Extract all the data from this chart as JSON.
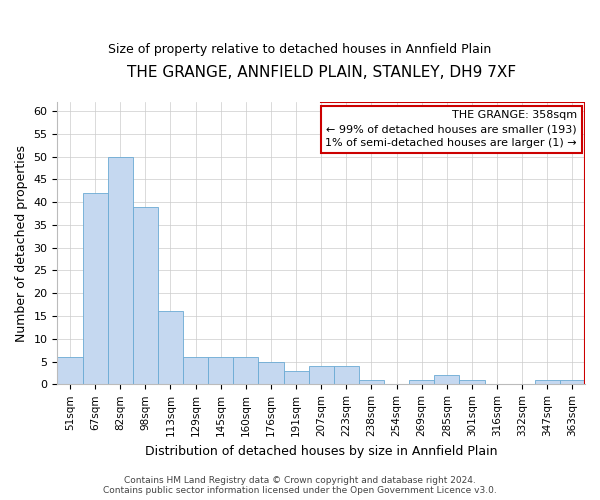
{
  "title": "THE GRANGE, ANNFIELD PLAIN, STANLEY, DH9 7XF",
  "subtitle": "Size of property relative to detached houses in Annfield Plain",
  "xlabel": "Distribution of detached houses by size in Annfield Plain",
  "ylabel": "Number of detached properties",
  "footer1": "Contains HM Land Registry data © Crown copyright and database right 2024.",
  "footer2": "Contains public sector information licensed under the Open Government Licence v3.0.",
  "bar_labels": [
    "51sqm",
    "67sqm",
    "82sqm",
    "98sqm",
    "113sqm",
    "129sqm",
    "145sqm",
    "160sqm",
    "176sqm",
    "191sqm",
    "207sqm",
    "223sqm",
    "238sqm",
    "254sqm",
    "269sqm",
    "285sqm",
    "301sqm",
    "316sqm",
    "332sqm",
    "347sqm",
    "363sqm"
  ],
  "bar_values": [
    6,
    42,
    50,
    39,
    16,
    6,
    6,
    6,
    5,
    3,
    4,
    4,
    1,
    0,
    1,
    2,
    1,
    0,
    0,
    1,
    1
  ],
  "bar_color": "#c5d8f0",
  "bar_edgecolor": "#6aaad4",
  "ylim": [
    0,
    62
  ],
  "yticks": [
    0,
    5,
    10,
    15,
    20,
    25,
    30,
    35,
    40,
    45,
    50,
    55,
    60
  ],
  "annotation_line1": "THE GRANGE: 358sqm",
  "annotation_line2": "← 99% of detached houses are smaller (193)",
  "annotation_line3": "1% of semi-detached houses are larger (1) →",
  "annotation_box_edgecolor": "#cc0000",
  "red_line_color": "#cc0000",
  "background_color": "#ffffff",
  "grid_color": "#cccccc",
  "title_fontsize": 11,
  "subtitle_fontsize": 9,
  "ylabel_fontsize": 9,
  "xlabel_fontsize": 9,
  "tick_fontsize": 8,
  "xtick_fontsize": 7.5,
  "footer_fontsize": 6.5,
  "annotation_fontsize": 8
}
